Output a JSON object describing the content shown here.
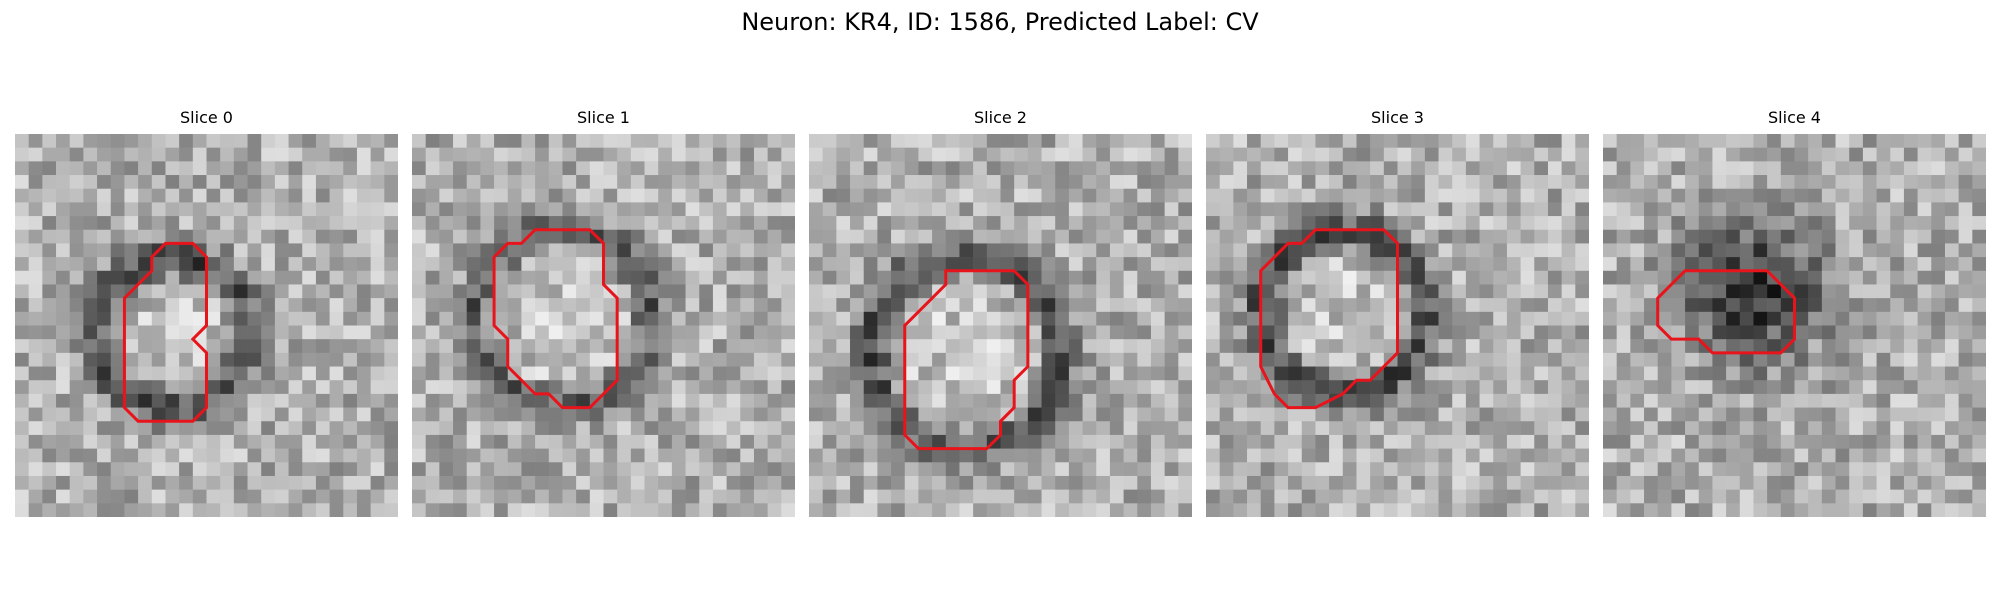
{
  "figure": {
    "title": "Neuron: KR4, ID: 1586, Predicted Label: CV"
  },
  "colors": {
    "contour": "#e8141c",
    "background": "#ffffff"
  },
  "panels": [
    {
      "title": "Slice 0",
      "outline": [
        [
          11,
          8
        ],
        [
          13,
          8
        ],
        [
          14,
          9
        ],
        [
          14,
          14
        ],
        [
          13,
          15
        ],
        [
          14,
          16
        ],
        [
          14,
          20
        ],
        [
          13,
          21
        ],
        [
          11,
          21
        ],
        [
          9,
          21
        ],
        [
          8,
          20
        ],
        [
          8,
          16
        ],
        [
          8,
          12
        ],
        [
          9,
          11
        ],
        [
          10,
          10
        ],
        [
          10,
          9
        ]
      ]
    },
    {
      "title": "Slice 1",
      "outline": [
        [
          10,
          7
        ],
        [
          13,
          7
        ],
        [
          14,
          8
        ],
        [
          14,
          11
        ],
        [
          15,
          12
        ],
        [
          15,
          18
        ],
        [
          14,
          19
        ],
        [
          13,
          20
        ],
        [
          11,
          20
        ],
        [
          10,
          19
        ],
        [
          9,
          19
        ],
        [
          8,
          18
        ],
        [
          7,
          17
        ],
        [
          7,
          15
        ],
        [
          6,
          14
        ],
        [
          6,
          12
        ],
        [
          6,
          9
        ],
        [
          7,
          8
        ],
        [
          8,
          8
        ],
        [
          9,
          7
        ]
      ]
    },
    {
      "title": "Slice 2",
      "outline": [
        [
          10,
          10
        ],
        [
          15,
          10
        ],
        [
          16,
          11
        ],
        [
          16,
          17
        ],
        [
          15,
          18
        ],
        [
          15,
          20
        ],
        [
          14,
          21
        ],
        [
          14,
          22
        ],
        [
          13,
          23
        ],
        [
          8,
          23
        ],
        [
          7,
          22
        ],
        [
          7,
          21
        ],
        [
          7,
          15
        ],
        [
          7,
          14
        ],
        [
          8,
          13
        ],
        [
          9,
          12
        ],
        [
          10,
          11
        ]
      ]
    },
    {
      "title": "Slice 3",
      "outline": [
        [
          10,
          7
        ],
        [
          13,
          7
        ],
        [
          14,
          8
        ],
        [
          14,
          16
        ],
        [
          13,
          17
        ],
        [
          12,
          18
        ],
        [
          11,
          18
        ],
        [
          10,
          19
        ],
        [
          8,
          20
        ],
        [
          7,
          20
        ],
        [
          6,
          20
        ],
        [
          5,
          19
        ],
        [
          4,
          17
        ],
        [
          4,
          15
        ],
        [
          4,
          10
        ],
        [
          5,
          9
        ],
        [
          6,
          8
        ],
        [
          7,
          8
        ],
        [
          8,
          7
        ]
      ]
    },
    {
      "title": "Slice 4",
      "outline": [
        [
          6,
          10
        ],
        [
          12,
          10
        ],
        [
          13,
          11
        ],
        [
          14,
          12
        ],
        [
          14,
          15
        ],
        [
          13,
          16
        ],
        [
          11,
          16
        ],
        [
          8,
          16
        ],
        [
          7,
          15
        ],
        [
          6,
          15
        ],
        [
          5,
          15
        ],
        [
          4,
          14
        ],
        [
          4,
          12
        ],
        [
          5,
          11
        ]
      ]
    }
  ]
}
